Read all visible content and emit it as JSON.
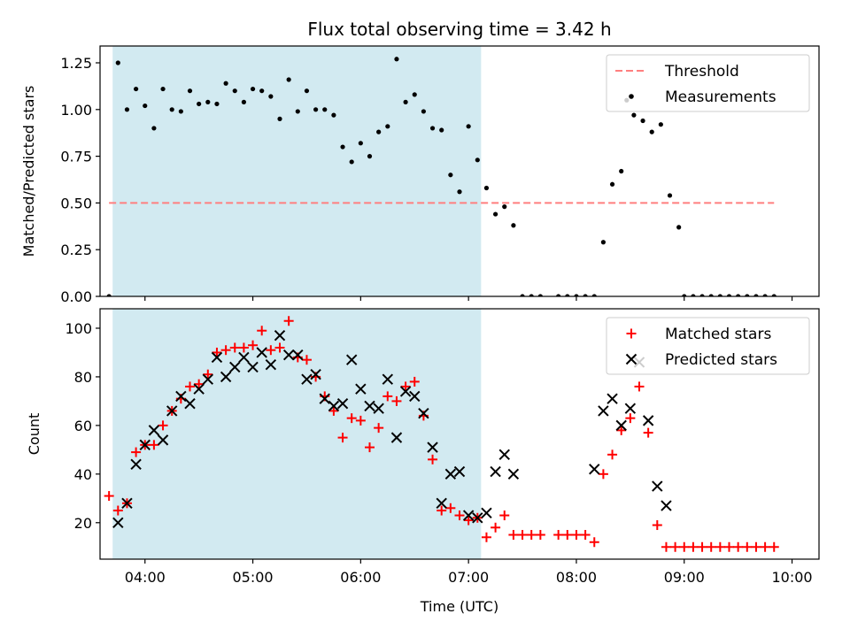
{
  "chart_data": [
    {
      "type": "scatter",
      "title": "Flux total observing time = 3.42 h",
      "ylabel": "Matched/Predicted stars",
      "xlabel": "",
      "ylim": [
        0,
        1.34
      ],
      "xlim": [
        "03:35",
        "10:15"
      ],
      "yticks": [
        "0.00",
        "0.25",
        "0.50",
        "0.75",
        "1.00",
        "1.25"
      ],
      "ytick_values": [
        0,
        0.25,
        0.5,
        0.75,
        1.0,
        1.25
      ],
      "shaded_span": [
        "03:42",
        "07:07"
      ],
      "shade_color": "#d2eaf1",
      "threshold": {
        "name": "Threshold",
        "value": 0.5,
        "x_range": [
          "03:40",
          "09:50"
        ],
        "color": "#ff7f7f"
      },
      "legend": {
        "placement": "top-right",
        "entries": [
          "Threshold",
          "Measurements"
        ]
      },
      "series": [
        {
          "name": "Measurements",
          "color": "#000000",
          "marker": "dot",
          "points": [
            [
              "03:40",
              0.0
            ],
            [
              "03:45",
              1.25
            ],
            [
              "03:50",
              1.0
            ],
            [
              "03:55",
              1.11
            ],
            [
              "04:00",
              1.02
            ],
            [
              "04:05",
              0.9
            ],
            [
              "04:10",
              1.11
            ],
            [
              "04:15",
              1.0
            ],
            [
              "04:20",
              0.99
            ],
            [
              "04:25",
              1.1
            ],
            [
              "04:30",
              1.03
            ],
            [
              "04:35",
              1.04
            ],
            [
              "04:40",
              1.03
            ],
            [
              "04:45",
              1.14
            ],
            [
              "04:50",
              1.1
            ],
            [
              "04:55",
              1.04
            ],
            [
              "05:00",
              1.11
            ],
            [
              "05:05",
              1.1
            ],
            [
              "05:10",
              1.07
            ],
            [
              "05:15",
              0.95
            ],
            [
              "05:20",
              1.16
            ],
            [
              "05:25",
              0.99
            ],
            [
              "05:30",
              1.1
            ],
            [
              "05:35",
              1.0
            ],
            [
              "05:40",
              1.0
            ],
            [
              "05:45",
              0.97
            ],
            [
              "05:50",
              0.8
            ],
            [
              "05:55",
              0.72
            ],
            [
              "06:00",
              0.82
            ],
            [
              "06:05",
              0.75
            ],
            [
              "06:10",
              0.88
            ],
            [
              "06:15",
              0.91
            ],
            [
              "06:20",
              1.27
            ],
            [
              "06:25",
              1.04
            ],
            [
              "06:30",
              1.08
            ],
            [
              "06:35",
              0.99
            ],
            [
              "06:40",
              0.9
            ],
            [
              "06:45",
              0.89
            ],
            [
              "06:50",
              0.65
            ],
            [
              "06:55",
              0.56
            ],
            [
              "07:00",
              0.91
            ],
            [
              "07:05",
              0.73
            ],
            [
              "07:10",
              0.58
            ],
            [
              "07:15",
              0.44
            ],
            [
              "07:20",
              0.48
            ],
            [
              "07:25",
              0.38
            ],
            [
              "07:30",
              0.0
            ],
            [
              "07:35",
              0.0
            ],
            [
              "07:40",
              0.0
            ],
            [
              "07:50",
              0.0
            ],
            [
              "07:55",
              0.0
            ],
            [
              "08:00",
              0.0
            ],
            [
              "08:05",
              0.0
            ],
            [
              "08:10",
              0.0
            ],
            [
              "08:15",
              0.29
            ],
            [
              "08:20",
              0.6
            ],
            [
              "08:25",
              0.67
            ],
            [
              "08:28",
              1.05
            ],
            [
              "08:32",
              0.97
            ],
            [
              "08:37",
              0.94
            ],
            [
              "08:42",
              0.88
            ],
            [
              "08:47",
              0.92
            ],
            [
              "08:52",
              0.54
            ],
            [
              "08:57",
              0.37
            ],
            [
              "09:00",
              0.0
            ],
            [
              "09:05",
              0.0
            ],
            [
              "09:10",
              0.0
            ],
            [
              "09:15",
              0.0
            ],
            [
              "09:20",
              0.0
            ],
            [
              "09:25",
              0.0
            ],
            [
              "09:30",
              0.0
            ],
            [
              "09:35",
              0.0
            ],
            [
              "09:40",
              0.0
            ],
            [
              "09:45",
              0.0
            ],
            [
              "09:50",
              0.0
            ]
          ]
        }
      ]
    },
    {
      "type": "scatter",
      "title": "",
      "ylabel": "Count",
      "xlabel": "Time (UTC)",
      "ylim": [
        5,
        108
      ],
      "xlim": [
        "03:35",
        "10:15"
      ],
      "yticks": [
        "20",
        "40",
        "60",
        "80",
        "100"
      ],
      "ytick_values": [
        20,
        40,
        60,
        80,
        100
      ],
      "xticks": [
        "04:00",
        "05:00",
        "06:00",
        "07:00",
        "08:00",
        "09:00",
        "10:00"
      ],
      "shaded_span": [
        "03:42",
        "07:07"
      ],
      "shade_color": "#d2eaf1",
      "legend": {
        "placement": "top-right",
        "entries": [
          "Matched stars",
          "Predicted stars"
        ]
      },
      "series": [
        {
          "name": "Matched stars",
          "color": "#ff0000",
          "marker": "plus",
          "points": [
            [
              "03:40",
              31
            ],
            [
              "03:45",
              25
            ],
            [
              "03:50",
              28
            ],
            [
              "03:55",
              49
            ],
            [
              "04:00",
              52
            ],
            [
              "04:05",
              52
            ],
            [
              "04:10",
              60
            ],
            [
              "04:15",
              66
            ],
            [
              "04:20",
              71
            ],
            [
              "04:25",
              76
            ],
            [
              "04:30",
              77
            ],
            [
              "04:35",
              81
            ],
            [
              "04:40",
              90
            ],
            [
              "04:45",
              91
            ],
            [
              "04:50",
              92
            ],
            [
              "04:55",
              92
            ],
            [
              "05:00",
              93
            ],
            [
              "05:05",
              99
            ],
            [
              "05:10",
              91
            ],
            [
              "05:15",
              92
            ],
            [
              "05:20",
              103
            ],
            [
              "05:25",
              88
            ],
            [
              "05:30",
              87
            ],
            [
              "05:35",
              80
            ],
            [
              "05:40",
              72
            ],
            [
              "05:45",
              66
            ],
            [
              "05:50",
              55
            ],
            [
              "05:55",
              63
            ],
            [
              "06:00",
              62
            ],
            [
              "06:05",
              51
            ],
            [
              "06:10",
              59
            ],
            [
              "06:15",
              72
            ],
            [
              "06:20",
              70
            ],
            [
              "06:25",
              76
            ],
            [
              "06:30",
              78
            ],
            [
              "06:35",
              64
            ],
            [
              "06:40",
              46
            ],
            [
              "06:45",
              25
            ],
            [
              "06:50",
              26
            ],
            [
              "06:55",
              23
            ],
            [
              "07:00",
              21
            ],
            [
              "07:05",
              22
            ],
            [
              "07:10",
              14
            ],
            [
              "07:15",
              18
            ],
            [
              "07:20",
              23
            ],
            [
              "07:25",
              15
            ],
            [
              "07:30",
              15
            ],
            [
              "07:35",
              15
            ],
            [
              "07:40",
              15
            ],
            [
              "07:50",
              15
            ],
            [
              "07:55",
              15
            ],
            [
              "08:00",
              15
            ],
            [
              "08:05",
              15
            ],
            [
              "08:10",
              12
            ],
            [
              "08:15",
              40
            ],
            [
              "08:20",
              48
            ],
            [
              "08:25",
              58
            ],
            [
              "08:30",
              63
            ],
            [
              "08:35",
              76
            ],
            [
              "08:40",
              57
            ],
            [
              "08:45",
              19
            ],
            [
              "08:50",
              10
            ],
            [
              "08:55",
              10
            ],
            [
              "09:00",
              10
            ],
            [
              "09:05",
              10
            ],
            [
              "09:10",
              10
            ],
            [
              "09:15",
              10
            ],
            [
              "09:20",
              10
            ],
            [
              "09:25",
              10
            ],
            [
              "09:30",
              10
            ],
            [
              "09:35",
              10
            ],
            [
              "09:40",
              10
            ],
            [
              "09:45",
              10
            ],
            [
              "09:50",
              10
            ]
          ]
        },
        {
          "name": "Predicted stars",
          "color": "#000000",
          "marker": "x",
          "points": [
            [
              "03:45",
              20
            ],
            [
              "03:50",
              28
            ],
            [
              "03:55",
              44
            ],
            [
              "04:00",
              52
            ],
            [
              "04:05",
              58
            ],
            [
              "04:10",
              54
            ],
            [
              "04:15",
              66
            ],
            [
              "04:20",
              72
            ],
            [
              "04:25",
              69
            ],
            [
              "04:30",
              75
            ],
            [
              "04:35",
              79
            ],
            [
              "04:40",
              88
            ],
            [
              "04:45",
              80
            ],
            [
              "04:50",
              84
            ],
            [
              "04:55",
              88
            ],
            [
              "05:00",
              84
            ],
            [
              "05:05",
              90
            ],
            [
              "05:10",
              85
            ],
            [
              "05:15",
              97
            ],
            [
              "05:20",
              89
            ],
            [
              "05:25",
              89
            ],
            [
              "05:30",
              79
            ],
            [
              "05:35",
              81
            ],
            [
              "05:40",
              71
            ],
            [
              "05:45",
              68
            ],
            [
              "05:50",
              69
            ],
            [
              "05:55",
              87
            ],
            [
              "06:00",
              75
            ],
            [
              "06:05",
              68
            ],
            [
              "06:10",
              67
            ],
            [
              "06:15",
              79
            ],
            [
              "06:20",
              55
            ],
            [
              "06:25",
              74
            ],
            [
              "06:30",
              72
            ],
            [
              "06:35",
              65
            ],
            [
              "06:40",
              51
            ],
            [
              "06:45",
              28
            ],
            [
              "06:50",
              40
            ],
            [
              "06:55",
              41
            ],
            [
              "07:00",
              23
            ],
            [
              "07:05",
              22
            ],
            [
              "07:10",
              24
            ],
            [
              "07:15",
              41
            ],
            [
              "07:20",
              48
            ],
            [
              "07:25",
              40
            ],
            [
              "08:10",
              42
            ],
            [
              "08:15",
              66
            ],
            [
              "08:20",
              71
            ],
            [
              "08:25",
              60
            ],
            [
              "08:30",
              67
            ],
            [
              "08:35",
              86
            ],
            [
              "08:40",
              62
            ],
            [
              "08:45",
              35
            ],
            [
              "08:50",
              27
            ]
          ]
        }
      ]
    }
  ]
}
